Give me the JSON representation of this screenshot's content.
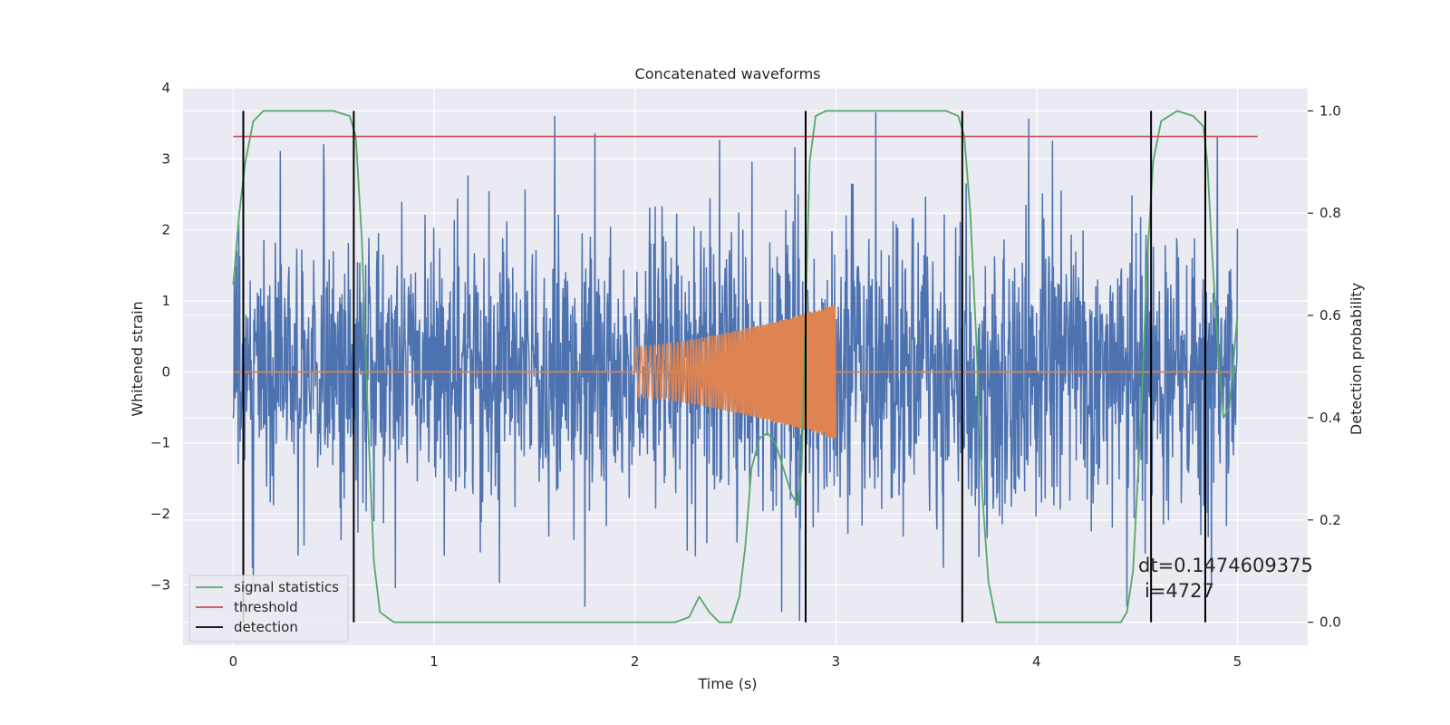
{
  "chart_data": {
    "type": "line",
    "title": "Concatenated waveforms",
    "xlabel": "Time (s)",
    "ylabel": "Whitened strain",
    "ylabel_right": "Detection probability",
    "xlim": [
      -0.25,
      5.35
    ],
    "ylim": [
      -3.85,
      4.0
    ],
    "ylim_right": [
      -0.045,
      1.045
    ],
    "x_ticks": [
      0,
      1,
      2,
      3,
      4,
      5
    ],
    "x_tick_labels": [
      "0",
      "1",
      "2",
      "3",
      "4",
      "5"
    ],
    "y_ticks": [
      -3,
      -2,
      -1,
      0,
      1,
      2,
      3,
      4
    ],
    "y_tick_labels": [
      "−3",
      "−2",
      "−1",
      "0",
      "1",
      "2",
      "3",
      "4"
    ],
    "y_right_ticks": [
      0.0,
      0.2,
      0.4,
      0.6,
      0.8,
      1.0
    ],
    "y_right_tick_labels": [
      "0.0",
      "0.2",
      "0.4",
      "0.6",
      "0.8",
      "1.0"
    ],
    "grid": true,
    "legend_position": "bottom-left",
    "colors": {
      "strain": "#4c72b0",
      "waveform": "#dd8452",
      "signal_statistics": "#55a868",
      "threshold": "#c44e52",
      "detection": "#000000",
      "plot_background": "#eaeaf2",
      "grid": "#ffffff"
    },
    "legend": [
      {
        "label": "signal statistics",
        "color": "#55a868"
      },
      {
        "label": "threshold",
        "color": "#c44e52"
      },
      {
        "label": "detection",
        "color": "#000000"
      }
    ],
    "strain": {
      "x_range": [
        0.0,
        5.0
      ],
      "amplitude_range": [
        -3.4,
        3.6
      ],
      "peaks": [
        {
          "x": 0.45,
          "y": 3.2
        },
        {
          "x": 1.6,
          "y": 3.6
        },
        {
          "x": 3.2,
          "y": 3.65
        },
        {
          "x": 4.9,
          "y": 3.3
        },
        {
          "x": 1.75,
          "y": -3.3
        },
        {
          "x": 2.82,
          "y": -3.5
        },
        {
          "x": 4.45,
          "y": -3.3
        },
        {
          "x": 0.1,
          "y": -3.0
        }
      ]
    },
    "waveform": {
      "x_range": [
        2.0,
        3.0
      ],
      "start_amplitude": 0.35,
      "end_amplitude": 0.95,
      "zero_line_range": [
        0.0,
        5.0
      ]
    },
    "signal_statistics": {
      "x": [
        0.0,
        0.03,
        0.06,
        0.1,
        0.15,
        0.3,
        0.5,
        0.58,
        0.61,
        0.64,
        0.67,
        0.7,
        0.73,
        0.8,
        1.5,
        2.2,
        2.27,
        2.32,
        2.37,
        2.42,
        2.48,
        2.52,
        2.55,
        2.58,
        2.62,
        2.66,
        2.7,
        2.74,
        2.78,
        2.81,
        2.83,
        2.85,
        2.87,
        2.9,
        2.95,
        3.2,
        3.55,
        3.61,
        3.64,
        3.67,
        3.7,
        3.73,
        3.76,
        3.8,
        4.0,
        4.3,
        4.42,
        4.45,
        4.48,
        4.52,
        4.55,
        4.58,
        4.62,
        4.7,
        4.78,
        4.83,
        4.85,
        4.87,
        4.9,
        4.93,
        4.96,
        5.0
      ],
      "y": [
        0.66,
        0.8,
        0.9,
        0.98,
        1.0,
        1.0,
        1.0,
        0.99,
        0.95,
        0.75,
        0.4,
        0.12,
        0.02,
        0.0,
        0.0,
        0.0,
        0.01,
        0.05,
        0.02,
        0.0,
        0.0,
        0.05,
        0.15,
        0.3,
        0.36,
        0.37,
        0.35,
        0.3,
        0.25,
        0.23,
        0.3,
        0.6,
        0.9,
        0.99,
        1.0,
        1.0,
        1.0,
        0.99,
        0.95,
        0.8,
        0.55,
        0.25,
        0.08,
        0.0,
        0.0,
        0.0,
        0.0,
        0.02,
        0.1,
        0.4,
        0.7,
        0.9,
        0.98,
        1.0,
        0.99,
        0.97,
        0.9,
        0.75,
        0.55,
        0.4,
        0.42,
        0.6
      ]
    },
    "threshold": {
      "value": 0.95,
      "x_range": [
        0.0,
        5.1
      ]
    },
    "detections": [
      0.05,
      0.6,
      2.85,
      3.63,
      4.57,
      4.84
    ],
    "annotations": [
      "dt=0.1474609375",
      "i=4727"
    ]
  }
}
